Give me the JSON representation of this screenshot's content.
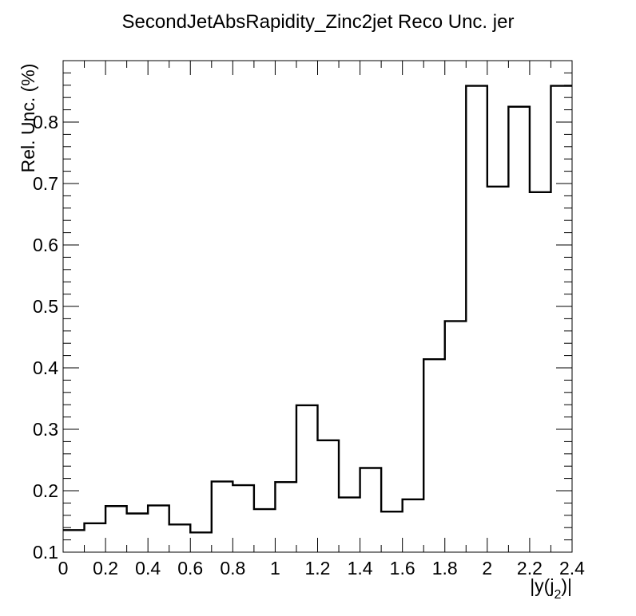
{
  "chart_data": {
    "type": "histogram-step",
    "title": "SecondJetAbsRapidity_Zinc2jet Reco Unc. jer",
    "xlabel_main": "|y(j",
    "xlabel_sub": "2",
    "xlabel_end": ")|",
    "ylabel": "Rel. Unc. (%)",
    "xlim": [
      0,
      2.4
    ],
    "ylim": [
      0.1,
      0.9
    ],
    "bin_edges": [
      0,
      0.1,
      0.2,
      0.3,
      0.4,
      0.5,
      0.6,
      0.7,
      0.8,
      0.9,
      1.0,
      1.1,
      1.2,
      1.3,
      1.4,
      1.5,
      1.6,
      1.7,
      1.8,
      1.9,
      2.0,
      2.1,
      2.2,
      2.3,
      2.4
    ],
    "values": [
      0.136,
      0.147,
      0.175,
      0.163,
      0.176,
      0.145,
      0.132,
      0.215,
      0.209,
      0.17,
      0.214,
      0.339,
      0.282,
      0.189,
      0.237,
      0.166,
      0.186,
      0.414,
      0.476,
      0.859,
      0.695,
      0.825,
      0.686,
      0.859
    ],
    "x_ticks": [
      0,
      0.2,
      0.4,
      0.6,
      0.8,
      1.0,
      1.2,
      1.4,
      1.6,
      1.8,
      2.0,
      2.2,
      2.4
    ],
    "x_tick_labels": [
      "0",
      "0.2",
      "0.4",
      "0.6",
      "0.8",
      "1",
      "1.2",
      "1.4",
      "1.6",
      "1.8",
      "2",
      "2.2",
      "2.4"
    ],
    "y_ticks": [
      0.1,
      0.2,
      0.3,
      0.4,
      0.5,
      0.6,
      0.7,
      0.8
    ],
    "y_tick_labels": [
      "0.1",
      "0.2",
      "0.3",
      "0.4",
      "0.5",
      "0.6",
      "0.7",
      "0.8"
    ],
    "grid": false,
    "legend": "none",
    "line_color": "#000000"
  }
}
